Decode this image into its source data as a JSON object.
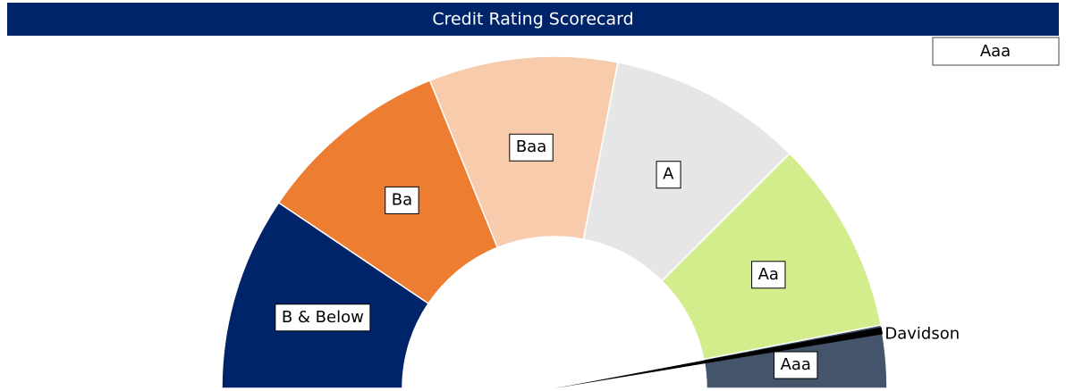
{
  "chart_data": {
    "type": "gauge",
    "title": "Credit Rating Scorecard",
    "rating": "Aaa",
    "categories": [
      "B & Below",
      "Ba",
      "Baa",
      "A",
      "Aa",
      "Aaa"
    ],
    "values": [
      34,
      34,
      33,
      34,
      34,
      11
    ],
    "colors": [
      "#002469",
      "#ed7d31",
      "#f8cbad",
      "#e6e6e6",
      "#d3ec8c",
      "#44546a"
    ],
    "needle": {
      "name": "Davidson",
      "value": 170,
      "color": "#000000"
    }
  }
}
